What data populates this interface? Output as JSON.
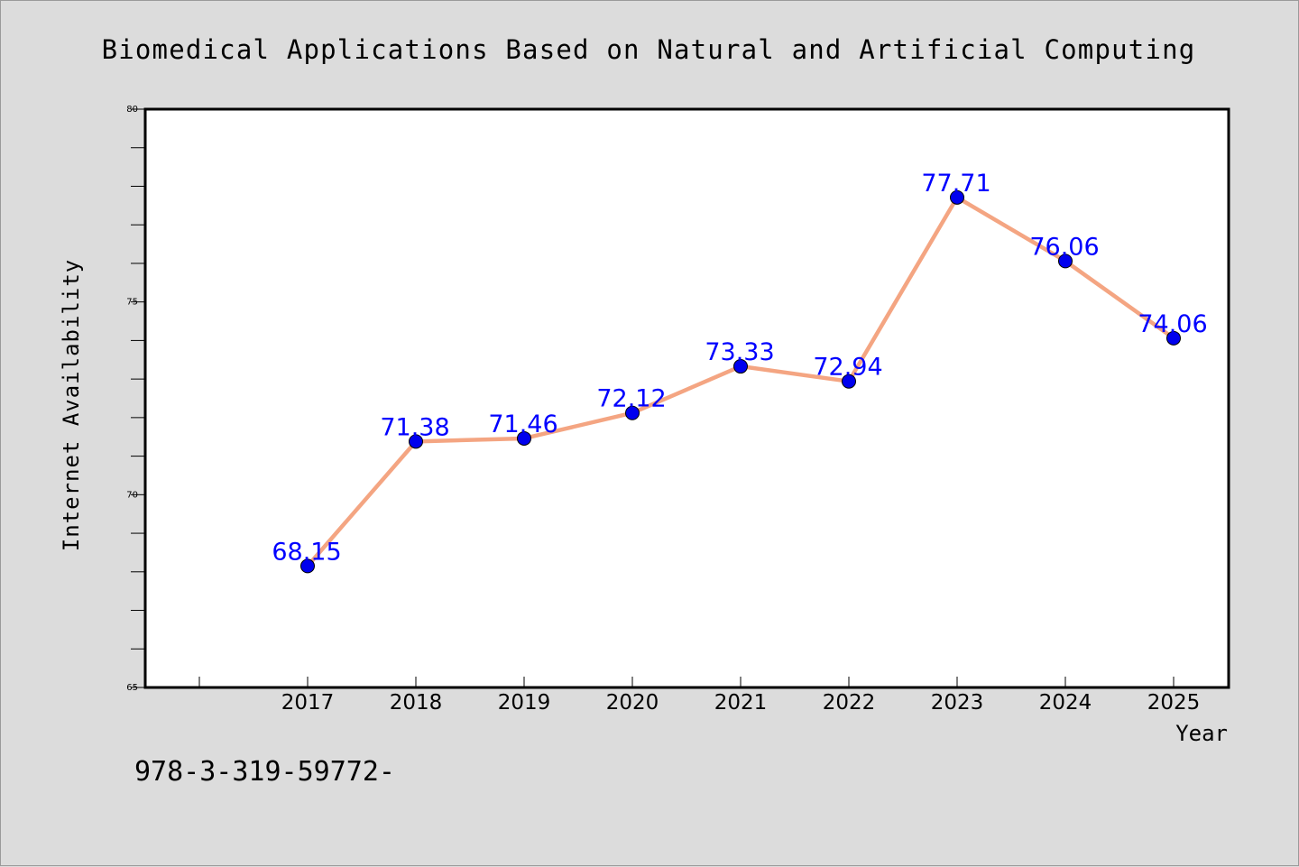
{
  "chart_data": {
    "type": "line",
    "title": "Biomedical Applications Based on Natural and Artificial Computing",
    "xlabel": "Year",
    "ylabel": "Internet Availability",
    "categories": [
      "2017",
      "2018",
      "2019",
      "2020",
      "2021",
      "2022",
      "2023",
      "2024",
      "2025"
    ],
    "values": [
      68.15,
      71.38,
      71.46,
      72.12,
      73.33,
      72.94,
      77.71,
      76.06,
      74.06
    ],
    "value_labels": [
      "68.15",
      "71.38",
      "71.46",
      "72.12",
      "73.33",
      "72.94",
      "77.71",
      "76.06",
      "74.06"
    ],
    "ylim": [
      65,
      80
    ],
    "yticks": [
      65,
      70,
      75,
      80
    ],
    "ytick_labels": [
      "65",
      "70",
      "75",
      "80"
    ],
    "grid": false,
    "legend": "none",
    "footer_text": "978-3-319-59772-",
    "colors": {
      "line": "#f4a582",
      "marker": "#0000ee",
      "value_label": "#0000ff",
      "plot_background": "#ffffff",
      "page_background": "#dcdcdc"
    }
  }
}
